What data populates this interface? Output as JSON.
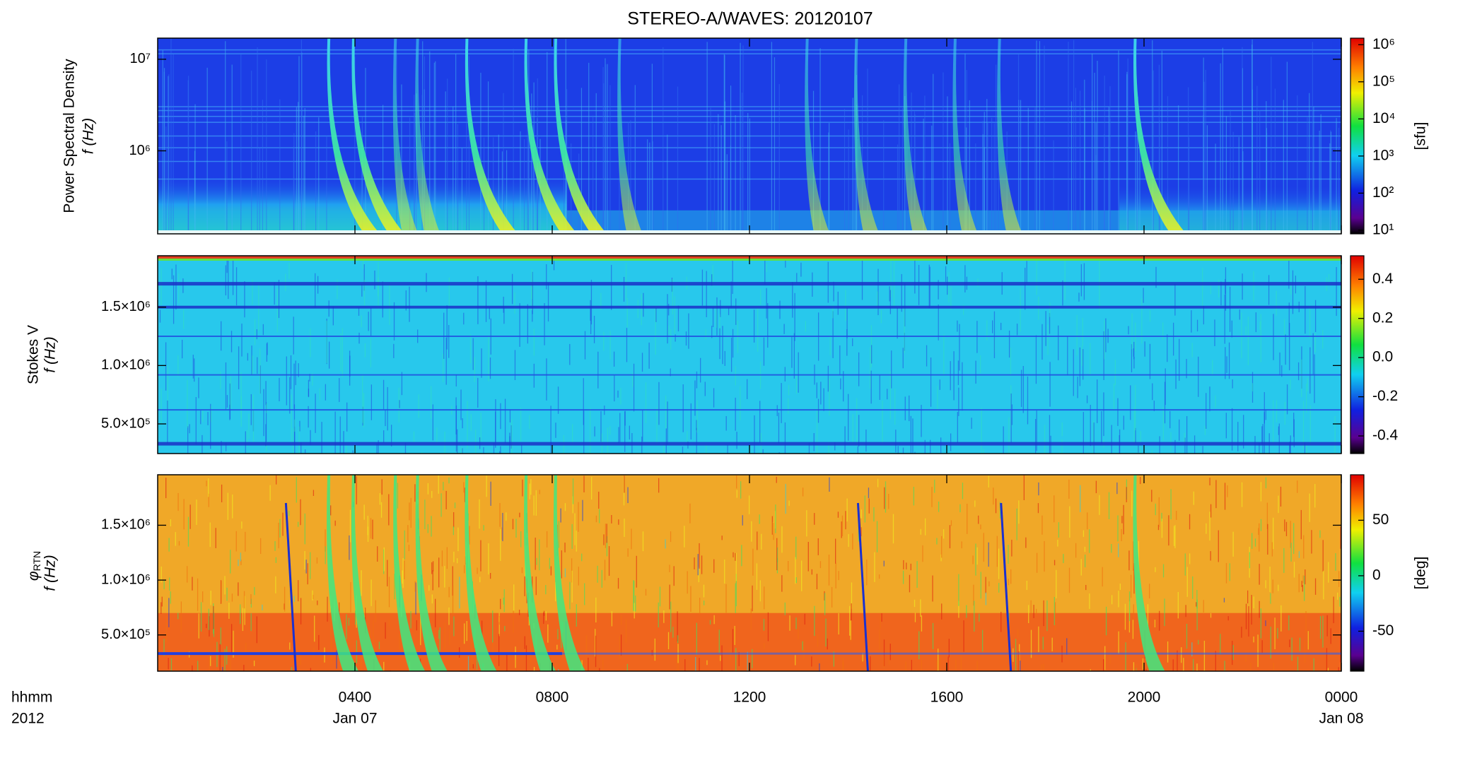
{
  "title": "STEREO-A/WAVES: 20120107",
  "chart_data": [
    {
      "type": "spectrogram",
      "ylabel": "Power Spectral Density",
      "ylabel2": "f (Hz)",
      "yscale": "log",
      "ylim": [
        124000,
        17000000
      ],
      "yticks": [
        {
          "value": 1000000,
          "label": "10⁶"
        },
        {
          "value": 10000000,
          "label": "10⁷"
        }
      ],
      "colorbar": {
        "label": "[sfu]",
        "scale": "log",
        "lim": [
          8,
          1500000
        ],
        "ticks": [
          {
            "value": 10,
            "label": "10¹"
          },
          {
            "value": 100,
            "label": "10²"
          },
          {
            "value": 1000,
            "label": "10³"
          },
          {
            "value": 10000,
            "label": "10⁴"
          },
          {
            "value": 100000,
            "label": "10⁵"
          },
          {
            "value": 1000000,
            "label": "10⁶"
          }
        ]
      }
    },
    {
      "type": "spectrogram",
      "ylabel": "Stokes V",
      "ylabel2": "f (Hz)",
      "yscale": "linear",
      "ylim": [
        246000,
        1940000
      ],
      "yticks": [
        {
          "value": 500000,
          "label": "5.0×10⁵"
        },
        {
          "value": 1000000,
          "label": "1.0×10⁶"
        },
        {
          "value": 1500000,
          "label": "1.5×10⁶"
        }
      ],
      "colorbar": {
        "scale": "linear",
        "lim": [
          -0.49,
          0.52
        ],
        "ticks": [
          {
            "value": -0.4,
            "label": "-0.4"
          },
          {
            "value": -0.2,
            "label": "-0.2"
          },
          {
            "value": 0,
            "label": "0.0"
          },
          {
            "value": 0.2,
            "label": "0.2"
          },
          {
            "value": 0.4,
            "label": "0.4"
          }
        ]
      }
    },
    {
      "type": "spectrogram",
      "ylabel": "φ",
      "ylabel_sub": "RTN",
      "ylabel2": "f (Hz)",
      "yscale": "linear",
      "ylim": [
        170000,
        1960000
      ],
      "yticks": [
        {
          "value": 500000,
          "label": "5.0×10⁵"
        },
        {
          "value": 1000000,
          "label": "1.0×10⁶"
        },
        {
          "value": 1500000,
          "label": "1.5×10⁶"
        }
      ],
      "colorbar": {
        "label": "[deg]",
        "scale": "linear",
        "lim": [
          -86,
          91
        ],
        "ticks": [
          -50,
          0,
          50
        ]
      },
      "xlim": [
        0,
        24
      ],
      "xticks": [
        {
          "value": 4,
          "label": "0400"
        },
        {
          "value": 8,
          "label": "0800"
        },
        {
          "value": 12,
          "label": "1200"
        },
        {
          "value": 16,
          "label": "1600"
        },
        {
          "value": 20,
          "label": "2000"
        },
        {
          "value": 24,
          "label": "0000"
        }
      ],
      "date_labels": [
        {
          "value": 4,
          "label": "Jan 07"
        },
        {
          "value": 24,
          "label": "Jan 08"
        }
      ],
      "xlabel": "hhmm",
      "xlabel2": "2012"
    }
  ]
}
